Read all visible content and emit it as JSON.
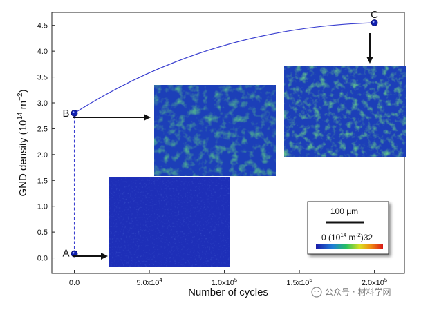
{
  "chart_data": {
    "type": "line",
    "xlabel": "Number of cycles",
    "ylabel": "GND density (10",
    "ylabel_sup": "14",
    "ylabel_unit": "m",
    "ylabel_unit_sup": "−2",
    "ylabel_close": ")",
    "xlim": [
      -15000,
      220000
    ],
    "ylim": [
      -0.3,
      4.75
    ],
    "x_ticks": [
      {
        "v": 0,
        "label": "0.0"
      },
      {
        "v": 50000,
        "label": "5.0x10",
        "sup": "4"
      },
      {
        "v": 100000,
        "label": "1.0x10",
        "sup": "5"
      },
      {
        "v": 150000,
        "label": "1.5x10",
        "sup": "5"
      },
      {
        "v": 200000,
        "label": "2.0x10",
        "sup": "5"
      }
    ],
    "y_ticks": [
      {
        "v": 0.0,
        "label": "0.0"
      },
      {
        "v": 0.5,
        "label": "0.5"
      },
      {
        "v": 1.0,
        "label": "1.0"
      },
      {
        "v": 1.5,
        "label": "1.5"
      },
      {
        "v": 2.0,
        "label": "2.0"
      },
      {
        "v": 2.5,
        "label": "2.5"
      },
      {
        "v": 3.0,
        "label": "3.0"
      },
      {
        "v": 3.5,
        "label": "3.5"
      },
      {
        "v": 4.0,
        "label": "4.0"
      },
      {
        "v": 4.5,
        "label": "4.5"
      }
    ],
    "points": [
      {
        "label": "A",
        "x": 0,
        "y": 0.08
      },
      {
        "label": "B",
        "x": 0,
        "y": 2.8
      },
      {
        "label": "C",
        "x": 200000,
        "y": 4.55
      }
    ],
    "line_color": "#3a3fd0",
    "point_color": "#1020b0",
    "grid": false
  },
  "scale_bar": {
    "length_label": "100 µm",
    "range_min": "0",
    "range_unit": "(10",
    "range_unit_sup": "14",
    "range_unit_mid": " m",
    "range_unit_sup2": "-2",
    "range_unit_close": ")",
    "range_max": "32"
  },
  "watermark": "公众号 · 材料学网"
}
